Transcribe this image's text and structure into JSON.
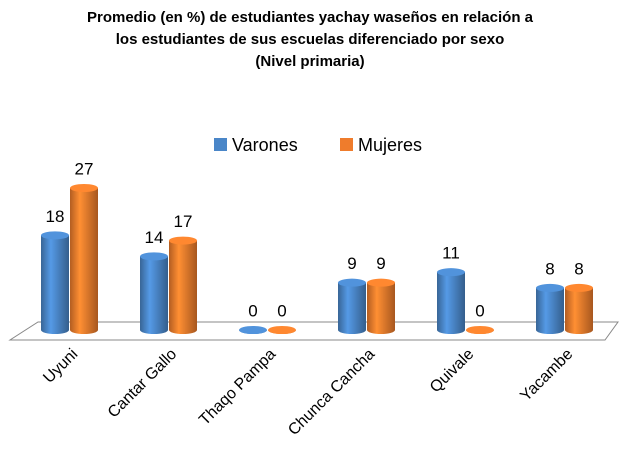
{
  "chart_data": {
    "type": "bar3d",
    "title": [
      "Promedio (en %) de estudiantes yachay waseños en relación a",
      "los estudiantes de sus escuelas diferenciado por sexo",
      "(Nivel primaria)"
    ],
    "categories": [
      "Uyuni",
      "Cantar Gallo",
      "Thaqo Pampa",
      "Chunca Cancha",
      "Quivale",
      "Yacambe"
    ],
    "series": [
      {
        "name": "Varones",
        "color": "#4a86c8",
        "values": [
          18,
          14,
          0,
          9,
          11,
          8
        ]
      },
      {
        "name": "Mujeres",
        "color": "#ef7c2c",
        "values": [
          27,
          17,
          0,
          9,
          0,
          8
        ]
      }
    ],
    "legend": "top"
  }
}
